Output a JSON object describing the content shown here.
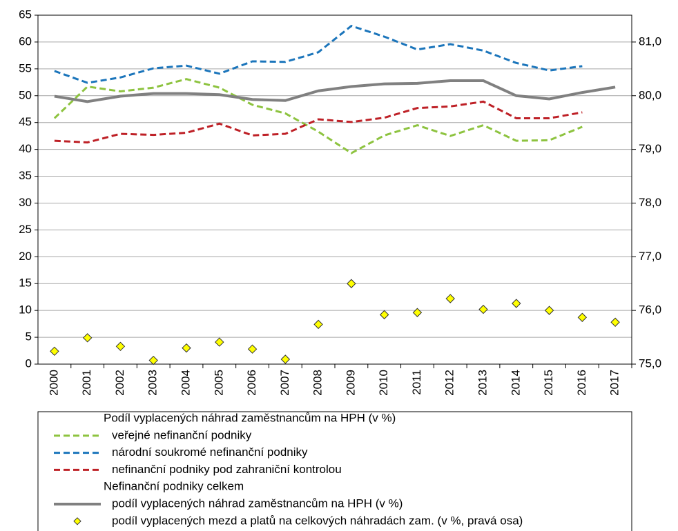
{
  "chart_data": {
    "type": "line",
    "categories": [
      "2000",
      "2001",
      "2002",
      "2003",
      "2004",
      "2005",
      "2006",
      "2007",
      "2008",
      "2009",
      "2010",
      "2011",
      "2012",
      "2013",
      "2014",
      "2015",
      "2016",
      "2017"
    ],
    "legend_headings": [
      "Podíl vyplacených náhrad zaměstnancům na HPH (v %)",
      "Nefinanční podniky celkem"
    ],
    "series": [
      {
        "name": "veřejné nefinanční podniky",
        "color": "#8dc33f",
        "style": "dashed",
        "values": [
          45.8,
          51.7,
          50.8,
          51.5,
          53.1,
          51.5,
          48.3,
          46.7,
          43.3,
          39.3,
          42.6,
          44.5,
          42.5,
          44.5,
          41.6,
          41.7,
          44.2,
          null
        ]
      },
      {
        "name": "národní soukromé nefinanční podniky",
        "color": "#1b75bb",
        "style": "dashed",
        "values": [
          54.6,
          52.4,
          53.4,
          55.1,
          55.6,
          54.1,
          56.4,
          56.3,
          58.1,
          63.0,
          61.0,
          58.6,
          59.6,
          58.4,
          56.1,
          54.7,
          55.5,
          null
        ]
      },
      {
        "name": "nefinanční podniky pod zahraniční kontrolou",
        "color": "#be2026",
        "style": "dashed",
        "values": [
          41.6,
          41.3,
          42.9,
          42.7,
          43.1,
          44.8,
          42.6,
          42.9,
          45.6,
          45.1,
          45.9,
          47.7,
          48.0,
          48.9,
          45.8,
          45.8,
          46.9,
          null
        ]
      },
      {
        "name": "podíl vyplacených náhrad zaměstnancům na HPH (v %)",
        "color": "#808080",
        "style": "solid",
        "values": [
          49.9,
          48.9,
          49.9,
          50.4,
          50.4,
          50.2,
          49.3,
          49.1,
          50.9,
          51.7,
          52.2,
          52.3,
          52.8,
          52.8,
          50.0,
          49.4,
          50.6,
          51.6
        ]
      },
      {
        "name": "podíl vyplacených mezd a platů na celkových náhradách zam. (v %, pravá osa)",
        "color": "#ffff00",
        "style": "markers",
        "axis": "y2",
        "values": [
          75.24,
          75.49,
          75.33,
          75.07,
          75.3,
          75.41,
          75.28,
          75.09,
          75.74,
          76.5,
          75.92,
          75.96,
          76.22,
          76.02,
          76.13,
          76.0,
          75.87,
          75.78
        ]
      }
    ],
    "ylim": [
      0,
      65
    ],
    "yticks": [
      0,
      5,
      10,
      15,
      20,
      25,
      30,
      35,
      40,
      45,
      50,
      55,
      60,
      65
    ],
    "y2lim": [
      75,
      81.5
    ],
    "y2ticks": [
      {
        "value": 75,
        "label": "75,0"
      },
      {
        "value": 76,
        "label": "76,0"
      },
      {
        "value": 77,
        "label": "77,0"
      },
      {
        "value": 78,
        "label": "78,0"
      },
      {
        "value": 79,
        "label": "79,0"
      },
      {
        "value": 80,
        "label": "80,0"
      },
      {
        "value": 81,
        "label": "81,0"
      }
    ],
    "grid": true
  }
}
